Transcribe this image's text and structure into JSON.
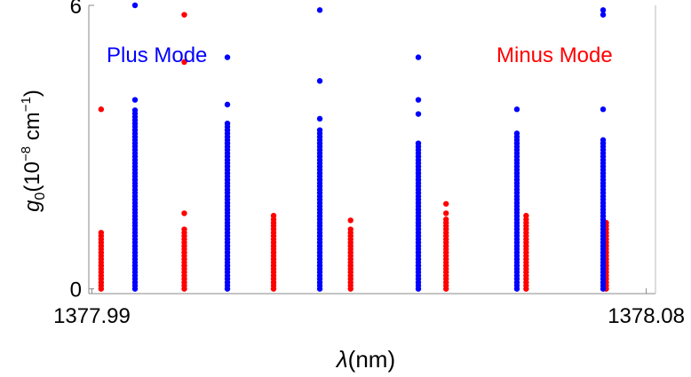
{
  "chart_data": {
    "type": "scatter",
    "xlabel_italic": "λ",
    "xlabel_unit": "(nm)",
    "ylabel_symbol": "g",
    "ylabel_sub": "0",
    "ylabel_unit_open": "(10",
    "ylabel_unit_exp": "−8",
    "ylabel_unit_mid": " cm",
    "ylabel_unit_exp2": "−1",
    "ylabel_unit_close": ")",
    "xlim": [
      1377.9895,
      1378.0815
    ],
    "ylim": [
      -0.1,
      6.0
    ],
    "x_ticks": [
      {
        "value": 1377.99,
        "label": "1377.99"
      },
      {
        "value": 1378.08,
        "label": "1378.08"
      }
    ],
    "y_ticks": [
      {
        "value": 0,
        "label": "0"
      },
      {
        "value": 6,
        "label": "6"
      }
    ],
    "annotations": [
      {
        "text": "Plus Mode",
        "color": "#0000ff"
      },
      {
        "text": "Minus Mode",
        "color": "#ff0000"
      }
    ],
    "series": [
      {
        "color": "#0000ff",
        "columns": [
          {
            "x": 1377.997,
            "top": 3.8,
            "extra": [
              4.0,
              6.0
            ]
          },
          {
            "x": 1378.012,
            "top": 3.5,
            "extra": [
              3.9,
              4.9
            ]
          },
          {
            "x": 1378.027,
            "top": 3.4,
            "extra": [
              3.6,
              4.4,
              5.9
            ]
          },
          {
            "x": 1378.043,
            "top": 3.1,
            "extra": [
              3.7,
              4.0,
              4.9
            ]
          },
          {
            "x": 1378.059,
            "top": 3.3,
            "extra": [
              3.8
            ]
          },
          {
            "x": 1378.073,
            "top": 3.2,
            "extra": [
              3.8,
              5.8,
              5.9
            ]
          }
        ]
      },
      {
        "color": "#ff0000",
        "columns": [
          {
            "x": 1377.9915,
            "top": 1.2,
            "extra": [
              3.8
            ]
          },
          {
            "x": 1378.005,
            "top": 1.3,
            "extra": [
              1.6,
              4.8,
              5.8
            ]
          },
          {
            "x": 1378.0195,
            "top": 1.5,
            "extra": [
              1.55
            ]
          },
          {
            "x": 1378.032,
            "top": 1.3,
            "extra": [
              1.45
            ]
          },
          {
            "x": 1378.0475,
            "top": 1.5,
            "extra": [
              1.6,
              1.8
            ]
          },
          {
            "x": 1378.0605,
            "top": 1.5,
            "extra": [
              1.55
            ]
          },
          {
            "x": 1378.0735,
            "top": 1.35,
            "extra": [
              1.4
            ]
          }
        ]
      }
    ]
  }
}
